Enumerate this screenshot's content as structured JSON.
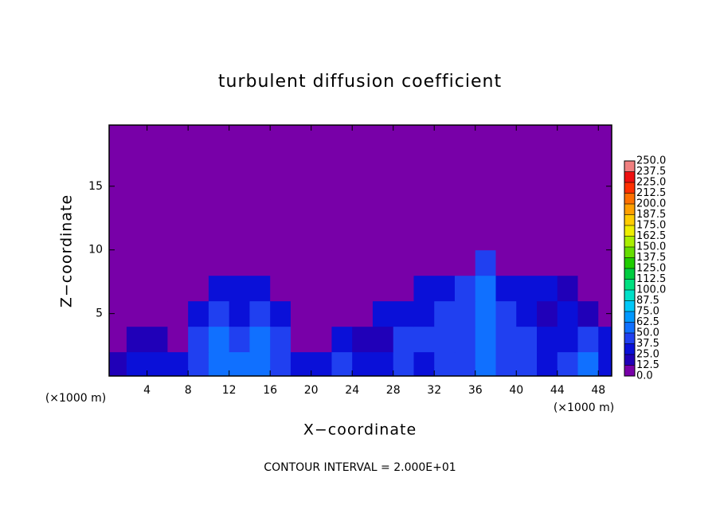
{
  "chart_data": {
    "type": "contour",
    "title": "turbulent diffusion coefficient",
    "x_label": "X−coordinate",
    "y_label": "Z−coordinate",
    "x_unit_left": "(×1000 m)",
    "x_unit_right": "(×1000 m)",
    "footer": "CONTOUR INTERVAL = 2.000E+01",
    "xlim": [
      0.3,
      49.3
    ],
    "ylim": [
      0.1,
      19.8
    ],
    "xticks": [
      4,
      8,
      12,
      16,
      20,
      24,
      28,
      32,
      36,
      40,
      44,
      48
    ],
    "yticks": [
      5,
      10,
      15
    ],
    "x": [
      1,
      3,
      5,
      7,
      9,
      11,
      13,
      15,
      17,
      19,
      21,
      23,
      25,
      27,
      29,
      31,
      33,
      35,
      37,
      39,
      41,
      43,
      45,
      47,
      49
    ],
    "y": [
      1,
      3,
      5,
      7,
      9,
      11,
      13,
      15,
      17,
      19
    ],
    "z": [
      [
        20,
        30,
        25,
        30,
        45,
        50,
        55,
        60,
        40,
        30,
        25,
        40,
        30,
        35,
        40,
        35,
        40,
        45,
        60,
        45,
        40,
        35,
        45,
        50,
        35
      ],
      [
        5,
        15,
        20,
        10,
        45,
        50,
        45,
        55,
        40,
        5,
        10,
        30,
        20,
        15,
        40,
        45,
        40,
        45,
        60,
        40,
        45,
        30,
        35,
        45,
        30
      ],
      [
        5,
        5,
        5,
        5,
        35,
        40,
        35,
        45,
        30,
        5,
        5,
        10,
        5,
        25,
        30,
        35,
        40,
        45,
        60,
        40,
        30,
        20,
        25,
        20,
        10
      ],
      [
        0,
        0,
        0,
        0,
        0,
        25,
        30,
        25,
        0,
        0,
        0,
        0,
        0,
        0,
        10,
        30,
        35,
        40,
        55,
        35,
        30,
        25,
        20,
        5,
        0
      ],
      [
        0,
        0,
        0,
        0,
        0,
        0,
        0,
        0,
        0,
        0,
        0,
        0,
        0,
        0,
        0,
        0,
        0,
        10,
        45,
        5,
        0,
        0,
        0,
        0,
        0
      ],
      [
        0,
        0,
        0,
        0,
        0,
        0,
        0,
        0,
        0,
        0,
        0,
        0,
        0,
        0,
        0,
        0,
        0,
        0,
        0,
        0,
        0,
        0,
        0,
        0,
        0
      ],
      [
        0,
        0,
        0,
        0,
        0,
        0,
        0,
        0,
        0,
        0,
        0,
        0,
        0,
        0,
        0,
        0,
        0,
        0,
        0,
        0,
        0,
        0,
        0,
        0,
        0
      ],
      [
        0,
        0,
        0,
        0,
        0,
        0,
        0,
        0,
        0,
        0,
        0,
        0,
        0,
        0,
        0,
        0,
        0,
        0,
        0,
        0,
        0,
        0,
        0,
        0,
        0
      ],
      [
        0,
        0,
        0,
        0,
        0,
        0,
        0,
        0,
        0,
        0,
        0,
        0,
        0,
        0,
        0,
        0,
        0,
        0,
        0,
        0,
        0,
        0,
        0,
        0,
        0
      ],
      [
        0,
        0,
        0,
        0,
        0,
        0,
        0,
        0,
        0,
        0,
        0,
        0,
        0,
        0,
        0,
        0,
        0,
        0,
        0,
        0,
        0,
        0,
        0,
        0,
        0
      ]
    ],
    "cticks": [
      {
        "value": 0,
        "label": "0.0"
      },
      12.5,
      {
        "value": 25,
        "label": "25.0"
      },
      37.5,
      {
        "value": 50,
        "label": "50.0"
      },
      62.5,
      {
        "value": 75,
        "label": "75.0"
      },
      87.5,
      {
        "value": 100,
        "label": "100.0"
      },
      112.5,
      {
        "value": 125,
        "label": "125.0"
      },
      137.5,
      {
        "value": 150,
        "label": "150.0"
      },
      162.5,
      {
        "value": 175,
        "label": "175.0"
      },
      187.5,
      {
        "value": 200,
        "label": "200.0"
      },
      212.5,
      {
        "value": 225,
        "label": "225.0"
      },
      237.5,
      {
        "value": 250,
        "label": "250.0"
      }
    ],
    "colors": [
      "#7800a8",
      "#2000b8",
      "#0a10d8",
      "#2040f0",
      "#1070ff",
      "#0098ff",
      "#00c8f8",
      "#00e0c8",
      "#00e080",
      "#00cc40",
      "#20cc00",
      "#66dd00",
      "#aaee00",
      "#eeee00",
      "#ffcc00",
      "#ffa000",
      "#ff7000",
      "#ff3000",
      "#ee1010",
      "#f08080"
    ]
  }
}
